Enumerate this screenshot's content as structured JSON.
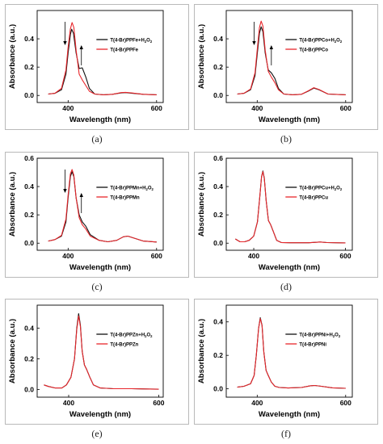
{
  "figure": {
    "panels": [
      {
        "caption": "(a)"
      },
      {
        "caption": "(b)"
      },
      {
        "caption": "(c)"
      },
      {
        "caption": "(d)"
      },
      {
        "caption": "(e)"
      },
      {
        "caption": "(f)"
      }
    ]
  },
  "colors": {
    "h2o2_series": "#111111",
    "control_series": "#e8262b",
    "frame": "#b9b9b9"
  },
  "chart_data": [
    {
      "type": "line",
      "xlabel": "Wavelength (nm)",
      "ylabel": "Absorbance (a.u.)",
      "xlim": [
        330,
        615
      ],
      "ylim": [
        -0.05,
        0.6
      ],
      "xticks": [
        400,
        600
      ],
      "yticks": [
        0.0,
        0.2,
        0.4
      ],
      "arrows": [
        {
          "x": 393,
          "direction": "down"
        },
        {
          "x": 430,
          "direction": "up"
        }
      ],
      "series": [
        {
          "name": "T(4-Br)PPFe+H2O2",
          "name_parts": [
            "T(4-Br)PPFe+H",
            "2",
            "O",
            "2"
          ],
          "x": [
            355,
            370,
            385,
            395,
            400,
            405,
            408,
            412,
            418,
            425,
            432,
            440,
            448,
            460,
            480,
            500,
            520,
            530,
            545,
            570,
            600
          ],
          "values": [
            0.01,
            0.015,
            0.04,
            0.15,
            0.3,
            0.43,
            0.468,
            0.44,
            0.3,
            0.19,
            0.195,
            0.13,
            0.05,
            0.01,
            0.005,
            0.008,
            0.018,
            0.02,
            0.015,
            0.008,
            0.005
          ]
        },
        {
          "name": "T(4-Br)PPFe",
          "name_parts": [
            "T(4-Br)PPFe"
          ],
          "x": [
            355,
            370,
            385,
            395,
            400,
            405,
            409,
            413,
            418,
            425,
            432,
            440,
            448,
            460,
            480,
            500,
            520,
            530,
            545,
            570,
            600
          ],
          "values": [
            0.01,
            0.015,
            0.05,
            0.18,
            0.34,
            0.47,
            0.515,
            0.48,
            0.32,
            0.15,
            0.11,
            0.07,
            0.03,
            0.01,
            0.005,
            0.008,
            0.02,
            0.022,
            0.017,
            0.008,
            0.005
          ]
        }
      ]
    },
    {
      "type": "line",
      "xlabel": "Wavelength (nm)",
      "ylabel": "Absorbance (a.u.)",
      "xlim": [
        330,
        615
      ],
      "ylim": [
        -0.05,
        0.6
      ],
      "xticks": [
        400,
        600
      ],
      "yticks": [
        0.0,
        0.2,
        0.4
      ],
      "arrows": [
        {
          "x": 393,
          "direction": "down"
        },
        {
          "x": 432,
          "direction": "up"
        }
      ],
      "series": [
        {
          "name": "T(4-Br)PPCo+H2O2",
          "name_parts": [
            "T(4-Br)PPCo+H",
            "2",
            "O",
            "2"
          ],
          "x": [
            355,
            370,
            385,
            395,
            400,
            405,
            409,
            413,
            418,
            425,
            432,
            440,
            448,
            460,
            480,
            500,
            515,
            528,
            540,
            560,
            600
          ],
          "values": [
            0.01,
            0.015,
            0.04,
            0.14,
            0.29,
            0.44,
            0.485,
            0.45,
            0.3,
            0.18,
            0.16,
            0.12,
            0.05,
            0.01,
            0.005,
            0.008,
            0.03,
            0.052,
            0.04,
            0.01,
            0.005
          ]
        },
        {
          "name": "T(4-Br)PPCo",
          "name_parts": [
            "T(4-Br)PPCo"
          ],
          "x": [
            355,
            370,
            385,
            395,
            400,
            405,
            409,
            413,
            418,
            425,
            432,
            440,
            448,
            460,
            480,
            500,
            515,
            528,
            540,
            560,
            600
          ],
          "values": [
            0.01,
            0.015,
            0.045,
            0.16,
            0.32,
            0.48,
            0.525,
            0.49,
            0.32,
            0.17,
            0.13,
            0.09,
            0.04,
            0.01,
            0.005,
            0.008,
            0.032,
            0.055,
            0.042,
            0.01,
            0.005
          ]
        }
      ]
    },
    {
      "type": "line",
      "xlabel": "Wavelength (nm)",
      "ylabel": "Absorbance (a.u.)",
      "xlim": [
        330,
        615
      ],
      "ylim": [
        -0.05,
        0.6
      ],
      "xticks": [
        400,
        600
      ],
      "yticks": [
        0.0,
        0.2,
        0.4,
        0.6
      ],
      "arrows": [
        {
          "x": 393,
          "direction": "down"
        },
        {
          "x": 430,
          "direction": "up"
        }
      ],
      "series": [
        {
          "name": "T(4-Br)PPMn+H2O2",
          "name_parts": [
            "T(4-Br)PPMn+H",
            "2",
            "O",
            "2"
          ],
          "x": [
            355,
            370,
            385,
            395,
            400,
            405,
            409,
            413,
            418,
            425,
            432,
            440,
            450,
            470,
            490,
            510,
            525,
            535,
            550,
            570,
            600
          ],
          "values": [
            0.015,
            0.025,
            0.05,
            0.15,
            0.32,
            0.47,
            0.505,
            0.47,
            0.32,
            0.2,
            0.15,
            0.12,
            0.06,
            0.02,
            0.01,
            0.02,
            0.045,
            0.05,
            0.035,
            0.015,
            0.008
          ]
        },
        {
          "name": "T(4-Br)PPMn",
          "name_parts": [
            "T(4-Br)PPMn"
          ],
          "x": [
            355,
            370,
            385,
            395,
            400,
            405,
            409,
            413,
            418,
            425,
            432,
            440,
            450,
            470,
            490,
            510,
            525,
            535,
            550,
            570,
            600
          ],
          "values": [
            0.015,
            0.025,
            0.055,
            0.17,
            0.34,
            0.49,
            0.52,
            0.48,
            0.32,
            0.18,
            0.13,
            0.1,
            0.05,
            0.02,
            0.01,
            0.02,
            0.045,
            0.05,
            0.035,
            0.015,
            0.008
          ]
        }
      ]
    },
    {
      "type": "line",
      "xlabel": "Wavelength (nm)",
      "ylabel": "Absorbance (a.u.)",
      "xlim": [
        340,
        615
      ],
      "ylim": [
        -0.05,
        0.6
      ],
      "xticks": [
        400,
        600
      ],
      "yticks": [
        0.0,
        0.2,
        0.4,
        0.6
      ],
      "arrows": [],
      "series": [
        {
          "name": "T(4-Br)PPCu+H2O2",
          "name_parts": [
            "T(4-Br)PPCu+H",
            "2",
            "O",
            "2"
          ],
          "x": [
            360,
            370,
            380,
            390,
            400,
            408,
            413,
            417,
            420,
            423,
            427,
            432,
            437,
            443,
            450,
            460,
            480,
            520,
            545,
            560,
            600
          ],
          "values": [
            0.03,
            0.01,
            0.01,
            0.02,
            0.05,
            0.15,
            0.32,
            0.47,
            0.51,
            0.46,
            0.3,
            0.16,
            0.13,
            0.08,
            0.02,
            0.005,
            0.003,
            0.003,
            0.008,
            0.004,
            0.002
          ]
        },
        {
          "name": "T(4-Br)PPCu",
          "name_parts": [
            "T(4-Br)PPCu"
          ],
          "x": [
            360,
            370,
            380,
            390,
            400,
            408,
            413,
            417,
            420,
            423,
            427,
            432,
            437,
            443,
            450,
            460,
            480,
            520,
            545,
            560,
            600
          ],
          "values": [
            0.03,
            0.01,
            0.01,
            0.02,
            0.05,
            0.15,
            0.32,
            0.47,
            0.505,
            0.455,
            0.3,
            0.16,
            0.13,
            0.08,
            0.02,
            0.005,
            0.003,
            0.003,
            0.008,
            0.004,
            0.002
          ]
        }
      ]
    },
    {
      "type": "line",
      "xlabel": "Wavelength (nm)",
      "ylabel": "Absorbance (a.u.)",
      "xlim": [
        330,
        610
      ],
      "ylim": [
        -0.05,
        0.55
      ],
      "xticks": [
        400,
        600
      ],
      "yticks": [
        0.0,
        0.2,
        0.4
      ],
      "arrows": [],
      "series": [
        {
          "name": "T(4-Br)PPZn+H2O2",
          "name_parts": [
            "T(4-Br)PPZn+H",
            "2",
            "O",
            "2"
          ],
          "x": [
            345,
            355,
            370,
            385,
            395,
            405,
            413,
            418,
            422,
            426,
            430,
            435,
            440,
            447,
            455,
            470,
            500,
            540,
            560,
            580,
            600
          ],
          "values": [
            0.03,
            0.02,
            0.01,
            0.01,
            0.03,
            0.08,
            0.2,
            0.4,
            0.495,
            0.42,
            0.25,
            0.16,
            0.13,
            0.08,
            0.03,
            0.01,
            0.005,
            0.005,
            0.004,
            0.003,
            0.002
          ]
        },
        {
          "name": "T(4-Br)PPZn",
          "name_parts": [
            "T(4-Br)PPZn"
          ],
          "x": [
            345,
            355,
            370,
            385,
            395,
            405,
            413,
            418,
            422,
            426,
            430,
            435,
            440,
            447,
            455,
            470,
            500,
            540,
            560,
            580,
            600
          ],
          "values": [
            0.03,
            0.02,
            0.01,
            0.01,
            0.03,
            0.08,
            0.2,
            0.39,
            0.48,
            0.41,
            0.25,
            0.16,
            0.13,
            0.08,
            0.03,
            0.01,
            0.005,
            0.005,
            0.004,
            0.003,
            0.002
          ]
        }
      ]
    },
    {
      "type": "line",
      "xlabel": "Wavelength (nm)",
      "ylabel": "Absorbance (a.u.)",
      "xlim": [
        330,
        615
      ],
      "ylim": [
        -0.05,
        0.5
      ],
      "xticks": [
        400,
        600
      ],
      "yticks": [
        0.0,
        0.2,
        0.4
      ],
      "arrows": [],
      "series": [
        {
          "name": "T(4-Br)PPNi+H2O2",
          "name_parts": [
            "T(4-Br)PPNi+H",
            "2",
            "O",
            "2"
          ],
          "x": [
            355,
            370,
            385,
            393,
            398,
            403,
            407,
            411,
            415,
            420,
            425,
            432,
            440,
            450,
            470,
            500,
            520,
            530,
            545,
            570,
            600
          ],
          "values": [
            0.01,
            0.015,
            0.03,
            0.08,
            0.2,
            0.36,
            0.425,
            0.38,
            0.22,
            0.11,
            0.08,
            0.04,
            0.015,
            0.008,
            0.005,
            0.008,
            0.018,
            0.02,
            0.015,
            0.006,
            0.003
          ]
        },
        {
          "name": "T(4-Br)PPNi",
          "name_parts": [
            "T(4-Br)PPNi"
          ],
          "x": [
            355,
            370,
            385,
            393,
            398,
            403,
            407,
            411,
            415,
            420,
            425,
            432,
            440,
            450,
            470,
            500,
            520,
            530,
            545,
            570,
            600
          ],
          "values": [
            0.01,
            0.015,
            0.03,
            0.08,
            0.2,
            0.36,
            0.42,
            0.378,
            0.22,
            0.11,
            0.08,
            0.04,
            0.015,
            0.008,
            0.005,
            0.008,
            0.018,
            0.02,
            0.015,
            0.006,
            0.003
          ]
        }
      ]
    }
  ]
}
